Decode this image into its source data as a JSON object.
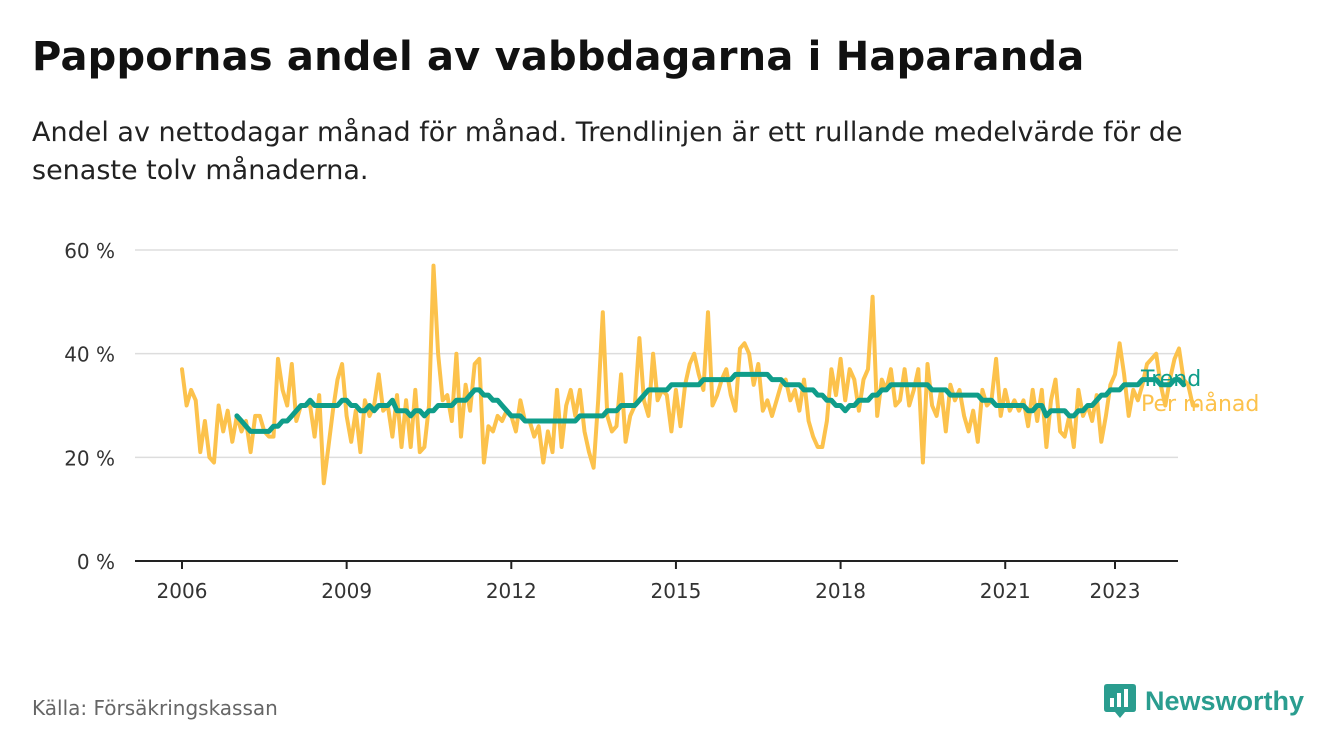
{
  "title": "Pappornas andel av vabbdagarna i Haparanda",
  "subtitle": "Andel av nettodagar månad för månad. Trendlinjen är ett rullande medelvärde för de senaste tolv månaderna.",
  "source": "Källa: Försäkringskassan",
  "brand": "Newsworthy",
  "colors": {
    "monthly": "#fcc24c",
    "trend": "#0f9d8a",
    "grid": "#dddddd",
    "axis": "#222222",
    "brand": "#2a9d8f"
  },
  "chart_data": {
    "type": "line",
    "title": "Pappornas andel av vabbdagarna i Haparanda",
    "ylabel": "",
    "xlabel": "",
    "ylim": [
      0,
      60
    ],
    "xlim": [
      "2006-01",
      "2023-05"
    ],
    "y_ticks": [
      0,
      20,
      40,
      60
    ],
    "y_tick_labels": [
      "0 %",
      "20 %",
      "40 %",
      "60 %"
    ],
    "x_ticks": [
      2006,
      2009,
      2012,
      2015,
      2018,
      2021,
      2023
    ],
    "x_tick_labels": [
      "2006",
      "2009",
      "2012",
      "2015",
      "2018",
      "2021",
      "2023"
    ],
    "grid": true,
    "legend": "inline-right",
    "x_start": "2006-01",
    "series": [
      {
        "name": "Per månad",
        "values": [
          37,
          30,
          33,
          31,
          21,
          27,
          20,
          19,
          30,
          25,
          29,
          23,
          28,
          25,
          27,
          21,
          28,
          28,
          25,
          24,
          24,
          39,
          33,
          30,
          38,
          27,
          30,
          30,
          30,
          24,
          32,
          15,
          22,
          29,
          35,
          38,
          28,
          23,
          29,
          21,
          31,
          28,
          30,
          36,
          29,
          30,
          24,
          32,
          22,
          31,
          22,
          33,
          21,
          22,
          30,
          57,
          40,
          31,
          32,
          27,
          40,
          24,
          34,
          29,
          38,
          39,
          19,
          26,
          25,
          28,
          27,
          29,
          28,
          25,
          31,
          27,
          27,
          24,
          26,
          19,
          25,
          21,
          33,
          22,
          30,
          33,
          28,
          33,
          25,
          21,
          18,
          31,
          48,
          28,
          25,
          26,
          36,
          23,
          28,
          30,
          43,
          31,
          28,
          40,
          31,
          33,
          32,
          25,
          33,
          26,
          34,
          38,
          40,
          36,
          33,
          48,
          30,
          32,
          35,
          37,
          32,
          29,
          41,
          42,
          40,
          34,
          38,
          29,
          31,
          28,
          31,
          34,
          35,
          31,
          33,
          29,
          35,
          27,
          24,
          22,
          22,
          27,
          37,
          32,
          39,
          31,
          37,
          35,
          29,
          35,
          37,
          51,
          28,
          35,
          33,
          37,
          30,
          31,
          37,
          30,
          33,
          37,
          19,
          38,
          30,
          28,
          33,
          25,
          34,
          31,
          33,
          28,
          25,
          29,
          23,
          33,
          30,
          31,
          39,
          28,
          33,
          29,
          31,
          29,
          31,
          26,
          33,
          27,
          33,
          22,
          31,
          35,
          25,
          24,
          28,
          22,
          33,
          28,
          30,
          27,
          32,
          23,
          28,
          34,
          36,
          42,
          36,
          28,
          33,
          31,
          34,
          38,
          39,
          40,
          34,
          30,
          35,
          39,
          41,
          35,
          34,
          30,
          30
        ]
      },
      {
        "name": "Trend",
        "start_offset": 12,
        "values": [
          28,
          27,
          26,
          25,
          25,
          25,
          25,
          25,
          26,
          26,
          27,
          27,
          28,
          29,
          30,
          30,
          31,
          30,
          30,
          30,
          30,
          30,
          30,
          31,
          31,
          30,
          30,
          29,
          29,
          30,
          29,
          30,
          30,
          30,
          31,
          29,
          29,
          29,
          28,
          29,
          29,
          28,
          29,
          29,
          30,
          30,
          30,
          30,
          31,
          31,
          31,
          32,
          33,
          33,
          32,
          32,
          31,
          31,
          30,
          29,
          28,
          28,
          28,
          27,
          27,
          27,
          27,
          27,
          27,
          27,
          27,
          27,
          27,
          27,
          27,
          28,
          28,
          28,
          28,
          28,
          28,
          29,
          29,
          29,
          30,
          30,
          30,
          30,
          31,
          32,
          33,
          33,
          33,
          33,
          33,
          34,
          34,
          34,
          34,
          34,
          34,
          34,
          35,
          35,
          35,
          35,
          35,
          35,
          35,
          36,
          36,
          36,
          36,
          36,
          36,
          36,
          36,
          35,
          35,
          35,
          34,
          34,
          34,
          34,
          33,
          33,
          33,
          32,
          32,
          31,
          31,
          30,
          30,
          29,
          30,
          30,
          31,
          31,
          31,
          32,
          32,
          33,
          33,
          34,
          34,
          34,
          34,
          34,
          34,
          34,
          34,
          34,
          33,
          33,
          33,
          33,
          32,
          32,
          32,
          32,
          32,
          32,
          32,
          31,
          31,
          31,
          30,
          30,
          30,
          30,
          30,
          30,
          30,
          29,
          29,
          30,
          30,
          28,
          29,
          29,
          29,
          29,
          28,
          28,
          29,
          29,
          30,
          30,
          31,
          32,
          32,
          33,
          33,
          33,
          34,
          34,
          34,
          34,
          35,
          35,
          35,
          35,
          34,
          34,
          34,
          35,
          35,
          34
        ]
      }
    ]
  }
}
